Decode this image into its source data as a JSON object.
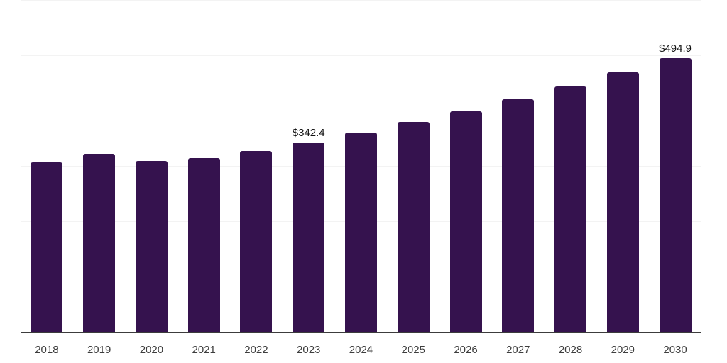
{
  "chart_data": {
    "type": "bar",
    "title": "",
    "xlabel": "",
    "ylabel": "",
    "categories": [
      "2018",
      "2019",
      "2020",
      "2021",
      "2022",
      "2023",
      "2024",
      "2025",
      "2026",
      "2027",
      "2028",
      "2029",
      "2030"
    ],
    "values": [
      306.4,
      321.3,
      308.8,
      313.9,
      327.4,
      342.4,
      360.8,
      378.9,
      398.4,
      420.6,
      443.9,
      469.3,
      494.9
    ],
    "data_labels": {
      "2023": "$342.4",
      "2030": "$494.9"
    },
    "ylim": [
      0,
      600
    ],
    "grid_step": 100,
    "grid": "horizontal gridlines only, no y-axis tick labels, no legend",
    "legend_position": "none",
    "bar_color": "#35124E",
    "gridline_color": "#F3F3F3",
    "axis_line_color": "#3C3C3C",
    "tick_label_color": "#3D3D3D",
    "value_label_color": "#111111",
    "background_color": "#FFFFFF"
  }
}
